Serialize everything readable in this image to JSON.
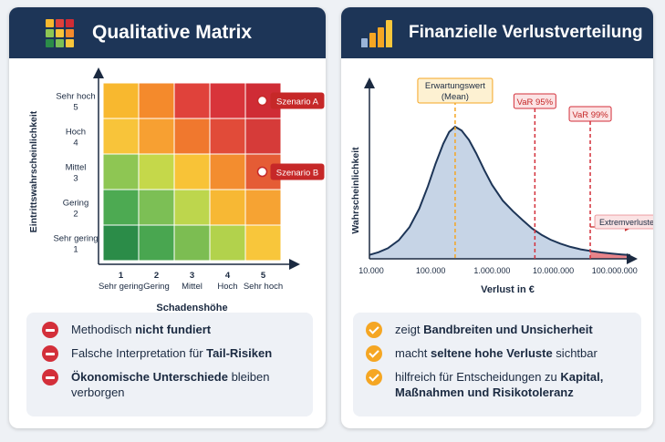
{
  "left": {
    "title": "Qualitative Matrix",
    "y_axis_label": "Eintrittswahrscheinlichkeit",
    "x_axis_label": "Schadenshöhe",
    "y_levels": [
      {
        "name": "Sehr hoch",
        "num": "5"
      },
      {
        "name": "Hoch",
        "num": "4"
      },
      {
        "name": "Mittel",
        "num": "3"
      },
      {
        "name": "Gering",
        "num": "2"
      },
      {
        "name": "Sehr gering",
        "num": "1"
      }
    ],
    "x_levels": [
      {
        "num": "1",
        "name": "Sehr gering"
      },
      {
        "num": "2",
        "name": "Gering"
      },
      {
        "num": "3",
        "name": "Mittel"
      },
      {
        "num": "4",
        "name": "Hoch"
      },
      {
        "num": "5",
        "name": "Sehr hoch"
      }
    ],
    "matrix_colors": [
      [
        "#f8b82f",
        "#f48a2c",
        "#e0423b",
        "#d8343a",
        "#cf2c35"
      ],
      [
        "#f8c43a",
        "#f7a032",
        "#f0782e",
        "#e14b39",
        "#d63b39"
      ],
      [
        "#8ec653",
        "#c5d84a",
        "#f8c337",
        "#f38d2f",
        "#e55c35"
      ],
      [
        "#4daa52",
        "#7cbf55",
        "#bdd64d",
        "#f7b834",
        "#f6a333"
      ],
      [
        "#2b8c48",
        "#49a650",
        "#7cbd52",
        "#b2d24c",
        "#f8c63b"
      ]
    ],
    "scenarios": [
      {
        "label": "Szenario A",
        "level": 5
      },
      {
        "label": "Szenario B",
        "level": 3
      }
    ],
    "bullets": [
      {
        "pre": "Methodisch ",
        "bold": "nicht fundiert",
        "post": ""
      },
      {
        "pre": "Falsche Interpretation für ",
        "bold": "Tail-Risiken",
        "post": ""
      },
      {
        "pre": "",
        "bold": "Ökonomische Unterschiede",
        "post": " bleiben verborgen"
      }
    ]
  },
  "right": {
    "title": "Finanzielle Verlustverteilung",
    "bullets": [
      {
        "pre": "zeigt ",
        "bold": "Bandbreiten und Unsicherheit",
        "post": ""
      },
      {
        "pre": "macht ",
        "bold": "seltene hohe Verluste",
        "post": " sichtbar"
      },
      {
        "pre": "hilfreich für Entscheidungen zu ",
        "bold": "Kapital, Maßnahmen und Risikotoleranz",
        "post": ""
      }
    ]
  },
  "chart_data": {
    "type": "area",
    "title": "",
    "xlabel": "Verlust in €",
    "ylabel": "Wahrscheinlichkeit",
    "x_scale": "log",
    "x_ticks": [
      "10.000",
      "100.000",
      "1.000.000",
      "10.000.000",
      "100.000.000"
    ],
    "x_tick_values": [
      10000,
      100000,
      1000000,
      10000000,
      100000000
    ],
    "xlim": [
      10000,
      200000000
    ],
    "grid": false,
    "markers": [
      {
        "label_lines": [
          "Erwartungswert",
          "(Mean)"
        ],
        "x": 250000,
        "color": "#f5a623",
        "style": "dashed"
      },
      {
        "label_lines": [
          "VaR 95%"
        ],
        "x": 5000000,
        "color": "#d32f3a",
        "style": "dashed"
      },
      {
        "label_lines": [
          "VaR 99%"
        ],
        "x": 40000000,
        "color": "#d32f3a",
        "style": "dashed"
      }
    ],
    "tail_region": {
      "label": "Extremverluste",
      "from_x": 40000000
    },
    "series": [
      {
        "x": [
          10000,
          14000,
          20000,
          30000,
          45000,
          65000,
          90000,
          120000,
          160000,
          200000,
          250000,
          320000,
          420000,
          550000,
          750000,
          1000000,
          1500000,
          2200000,
          3200000,
          4500000,
          6500000,
          9000000,
          13000000,
          19000000,
          28000000,
          40000000,
          60000000,
          90000000,
          130000000,
          180000000
        ],
        "y": [
          0.03,
          0.05,
          0.08,
          0.14,
          0.24,
          0.38,
          0.55,
          0.72,
          0.87,
          0.96,
          1.0,
          0.97,
          0.9,
          0.8,
          0.67,
          0.56,
          0.44,
          0.36,
          0.29,
          0.23,
          0.18,
          0.145,
          0.115,
          0.09,
          0.072,
          0.06,
          0.048,
          0.04,
          0.033,
          0.028
        ]
      }
    ]
  }
}
